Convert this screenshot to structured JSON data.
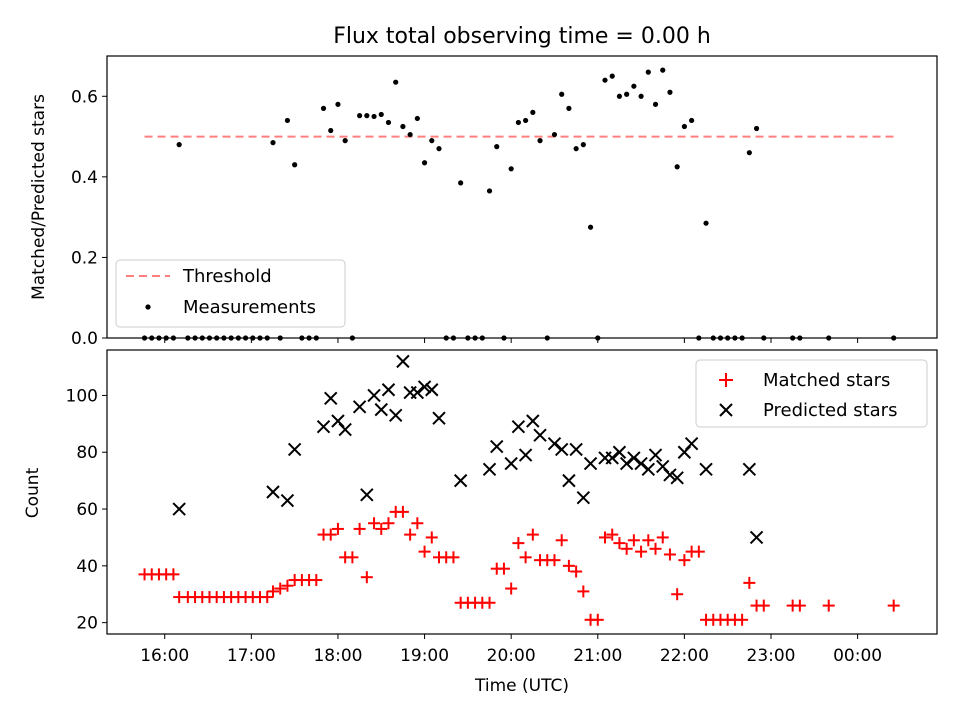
{
  "chart_data": [
    {
      "type": "scatter",
      "title": "Flux total observing time = 0.00 h",
      "xlabel": "",
      "ylabel": "Matched/Predicted stars",
      "xlim": [
        "15:20",
        "00:55"
      ],
      "ylim": [
        0,
        0.7
      ],
      "yticks": [
        "0.0",
        "0.2",
        "0.4",
        "0.6"
      ],
      "legend": {
        "position": "lower-left",
        "entries": [
          "Threshold",
          "Measurements"
        ]
      },
      "threshold": {
        "name": "Threshold",
        "value": 0.5,
        "x_start": "15:46",
        "x_end": "00:25",
        "color": "#ff7f7f"
      },
      "series": [
        {
          "name": "Measurements",
          "color": "#000000",
          "points": [
            [
              "15:46",
              0
            ],
            [
              "15:51",
              0
            ],
            [
              "15:56",
              0
            ],
            [
              "16:01",
              0
            ],
            [
              "16:06",
              0
            ],
            [
              "16:10",
              0.48
            ],
            [
              "16:16",
              0
            ],
            [
              "16:21",
              0
            ],
            [
              "16:26",
              0
            ],
            [
              "16:31",
              0
            ],
            [
              "16:36",
              0
            ],
            [
              "16:41",
              0
            ],
            [
              "16:46",
              0
            ],
            [
              "16:51",
              0
            ],
            [
              "16:56",
              0
            ],
            [
              "17:01",
              0
            ],
            [
              "17:06",
              0
            ],
            [
              "17:11",
              0
            ],
            [
              "17:15",
              0.485
            ],
            [
              "17:20",
              0
            ],
            [
              "17:25",
              0.54
            ],
            [
              "17:30",
              0.43
            ],
            [
              "17:35",
              0
            ],
            [
              "17:40",
              0
            ],
            [
              "17:45",
              0
            ],
            [
              "17:50",
              0.57
            ],
            [
              "17:55",
              0.515
            ],
            [
              "18:00",
              0.58
            ],
            [
              "18:05",
              0.49
            ],
            [
              "18:10",
              0
            ],
            [
              "18:15",
              0.552
            ],
            [
              "18:20",
              0.552
            ],
            [
              "18:25",
              0.55
            ],
            [
              "18:30",
              0.555
            ],
            [
              "18:35",
              0.535
            ],
            [
              "18:40",
              0.635
            ],
            [
              "18:45",
              0.525
            ],
            [
              "18:50",
              0.505
            ],
            [
              "18:55",
              0.545
            ],
            [
              "19:00",
              0.435
            ],
            [
              "19:05",
              0.49
            ],
            [
              "19:10",
              0.47
            ],
            [
              "19:15",
              0
            ],
            [
              "19:20",
              0
            ],
            [
              "19:25",
              0.385
            ],
            [
              "19:30",
              0
            ],
            [
              "19:35",
              0
            ],
            [
              "19:40",
              0
            ],
            [
              "19:45",
              0.365
            ],
            [
              "19:50",
              0.475
            ],
            [
              "19:55",
              0
            ],
            [
              "20:00",
              0.42
            ],
            [
              "20:05",
              0.535
            ],
            [
              "20:10",
              0.54
            ],
            [
              "20:15",
              0.56
            ],
            [
              "20:20",
              0.49
            ],
            [
              "20:25",
              0
            ],
            [
              "20:30",
              0.505
            ],
            [
              "20:35",
              0.605
            ],
            [
              "20:40",
              0.57
            ],
            [
              "20:45",
              0.47
            ],
            [
              "20:50",
              0.48
            ],
            [
              "20:55",
              0.275
            ],
            [
              "21:00",
              0
            ],
            [
              "21:05",
              0.64
            ],
            [
              "21:10",
              0.65
            ],
            [
              "21:15",
              0.6
            ],
            [
              "21:20",
              0.605
            ],
            [
              "21:25",
              0.625
            ],
            [
              "21:30",
              0.6
            ],
            [
              "21:35",
              0.66
            ],
            [
              "21:40",
              0.58
            ],
            [
              "21:45",
              0.665
            ],
            [
              "21:50",
              0.61
            ],
            [
              "21:55",
              0.425
            ],
            [
              "22:00",
              0.525
            ],
            [
              "22:05",
              0.54
            ],
            [
              "22:10",
              0
            ],
            [
              "22:15",
              0.285
            ],
            [
              "22:20",
              0
            ],
            [
              "22:25",
              0
            ],
            [
              "22:30",
              0
            ],
            [
              "22:35",
              0
            ],
            [
              "22:40",
              0
            ],
            [
              "22:45",
              0.46
            ],
            [
              "22:50",
              0.52
            ],
            [
              "22:55",
              0
            ],
            [
              "23:15",
              0
            ],
            [
              "23:20",
              0
            ],
            [
              "23:40",
              0
            ],
            [
              "00:25",
              0
            ]
          ]
        }
      ]
    },
    {
      "type": "scatter",
      "title": "",
      "xlabel": "Time (UTC)",
      "ylabel": "Count",
      "xlim": [
        "15:20",
        "00:55"
      ],
      "ylim": [
        16,
        116
      ],
      "yticks": [
        "20",
        "40",
        "60",
        "80",
        "100"
      ],
      "xticks": [
        "16:00",
        "17:00",
        "18:00",
        "19:00",
        "20:00",
        "21:00",
        "22:00",
        "23:00",
        "00:00"
      ],
      "legend": {
        "position": "upper-right",
        "entries": [
          "Matched stars",
          "Predicted stars"
        ]
      },
      "series": [
        {
          "name": "Matched stars",
          "marker": "plus",
          "color": "#ff0000",
          "points": [
            [
              "15:46",
              37
            ],
            [
              "15:51",
              37
            ],
            [
              "15:56",
              37
            ],
            [
              "16:01",
              37
            ],
            [
              "16:06",
              37
            ],
            [
              "16:10",
              29
            ],
            [
              "16:16",
              29
            ],
            [
              "16:21",
              29
            ],
            [
              "16:26",
              29
            ],
            [
              "16:31",
              29
            ],
            [
              "16:36",
              29
            ],
            [
              "16:41",
              29
            ],
            [
              "16:46",
              29
            ],
            [
              "16:51",
              29
            ],
            [
              "16:56",
              29
            ],
            [
              "17:01",
              29
            ],
            [
              "17:06",
              29
            ],
            [
              "17:11",
              29
            ],
            [
              "17:15",
              31
            ],
            [
              "17:20",
              32
            ],
            [
              "17:25",
              33
            ],
            [
              "17:30",
              35
            ],
            [
              "17:35",
              35
            ],
            [
              "17:40",
              35
            ],
            [
              "17:45",
              35
            ],
            [
              "17:50",
              51
            ],
            [
              "17:55",
              51
            ],
            [
              "18:00",
              53
            ],
            [
              "18:05",
              43
            ],
            [
              "18:10",
              43
            ],
            [
              "18:15",
              53
            ],
            [
              "18:20",
              36
            ],
            [
              "18:25",
              55
            ],
            [
              "18:30",
              53
            ],
            [
              "18:35",
              55
            ],
            [
              "18:40",
              59
            ],
            [
              "18:45",
              59
            ],
            [
              "18:50",
              51
            ],
            [
              "18:55",
              55
            ],
            [
              "19:00",
              45
            ],
            [
              "19:05",
              50
            ],
            [
              "19:10",
              43
            ],
            [
              "19:15",
              43
            ],
            [
              "19:20",
              43
            ],
            [
              "19:25",
              27
            ],
            [
              "19:30",
              27
            ],
            [
              "19:35",
              27
            ],
            [
              "19:40",
              27
            ],
            [
              "19:45",
              27
            ],
            [
              "19:50",
              39
            ],
            [
              "19:55",
              39
            ],
            [
              "20:00",
              32
            ],
            [
              "20:05",
              48
            ],
            [
              "20:10",
              43
            ],
            [
              "20:15",
              51
            ],
            [
              "20:20",
              42
            ],
            [
              "20:25",
              42
            ],
            [
              "20:30",
              42
            ],
            [
              "20:35",
              49
            ],
            [
              "20:40",
              40
            ],
            [
              "20:45",
              38
            ],
            [
              "20:50",
              31
            ],
            [
              "20:55",
              21
            ],
            [
              "21:00",
              21
            ],
            [
              "21:05",
              50
            ],
            [
              "21:10",
              51
            ],
            [
              "21:15",
              48
            ],
            [
              "21:20",
              46
            ],
            [
              "21:25",
              49
            ],
            [
              "21:30",
              45
            ],
            [
              "21:35",
              49
            ],
            [
              "21:40",
              46
            ],
            [
              "21:45",
              50
            ],
            [
              "21:50",
              44
            ],
            [
              "21:55",
              30
            ],
            [
              "22:00",
              42
            ],
            [
              "22:05",
              45
            ],
            [
              "22:10",
              45
            ],
            [
              "22:15",
              21
            ],
            [
              "22:20",
              21
            ],
            [
              "22:25",
              21
            ],
            [
              "22:30",
              21
            ],
            [
              "22:35",
              21
            ],
            [
              "22:40",
              21
            ],
            [
              "22:45",
              34
            ],
            [
              "22:50",
              26
            ],
            [
              "22:55",
              26
            ],
            [
              "23:15",
              26
            ],
            [
              "23:20",
              26
            ],
            [
              "23:40",
              26
            ],
            [
              "00:25",
              26
            ]
          ]
        },
        {
          "name": "Predicted stars",
          "marker": "x",
          "color": "#000000",
          "points": [
            [
              "16:10",
              60
            ],
            [
              "17:15",
              66
            ],
            [
              "17:25",
              63
            ],
            [
              "17:30",
              81
            ],
            [
              "17:50",
              89
            ],
            [
              "17:55",
              99
            ],
            [
              "18:00",
              91
            ],
            [
              "18:05",
              88
            ],
            [
              "18:15",
              96
            ],
            [
              "18:20",
              65
            ],
            [
              "18:25",
              100
            ],
            [
              "18:30",
              95
            ],
            [
              "18:35",
              102
            ],
            [
              "18:40",
              93
            ],
            [
              "18:45",
              112
            ],
            [
              "18:50",
              101
            ],
            [
              "18:55",
              101
            ],
            [
              "19:00",
              103
            ],
            [
              "19:05",
              102
            ],
            [
              "19:10",
              92
            ],
            [
              "19:25",
              70
            ],
            [
              "19:45",
              74
            ],
            [
              "19:50",
              82
            ],
            [
              "20:00",
              76
            ],
            [
              "20:05",
              89
            ],
            [
              "20:10",
              79
            ],
            [
              "20:15",
              91
            ],
            [
              "20:20",
              86
            ],
            [
              "20:30",
              83
            ],
            [
              "20:35",
              81
            ],
            [
              "20:40",
              70
            ],
            [
              "20:45",
              81
            ],
            [
              "20:50",
              64
            ],
            [
              "20:55",
              76
            ],
            [
              "21:05",
              78
            ],
            [
              "21:10",
              78
            ],
            [
              "21:15",
              80
            ],
            [
              "21:20",
              76
            ],
            [
              "21:25",
              78
            ],
            [
              "21:30",
              76
            ],
            [
              "21:35",
              74
            ],
            [
              "21:40",
              79
            ],
            [
              "21:45",
              75
            ],
            [
              "21:50",
              72
            ],
            [
              "21:55",
              71
            ],
            [
              "22:00",
              80
            ],
            [
              "22:05",
              83
            ],
            [
              "22:15",
              74
            ],
            [
              "22:45",
              74
            ],
            [
              "22:50",
              50
            ]
          ]
        }
      ]
    }
  ]
}
